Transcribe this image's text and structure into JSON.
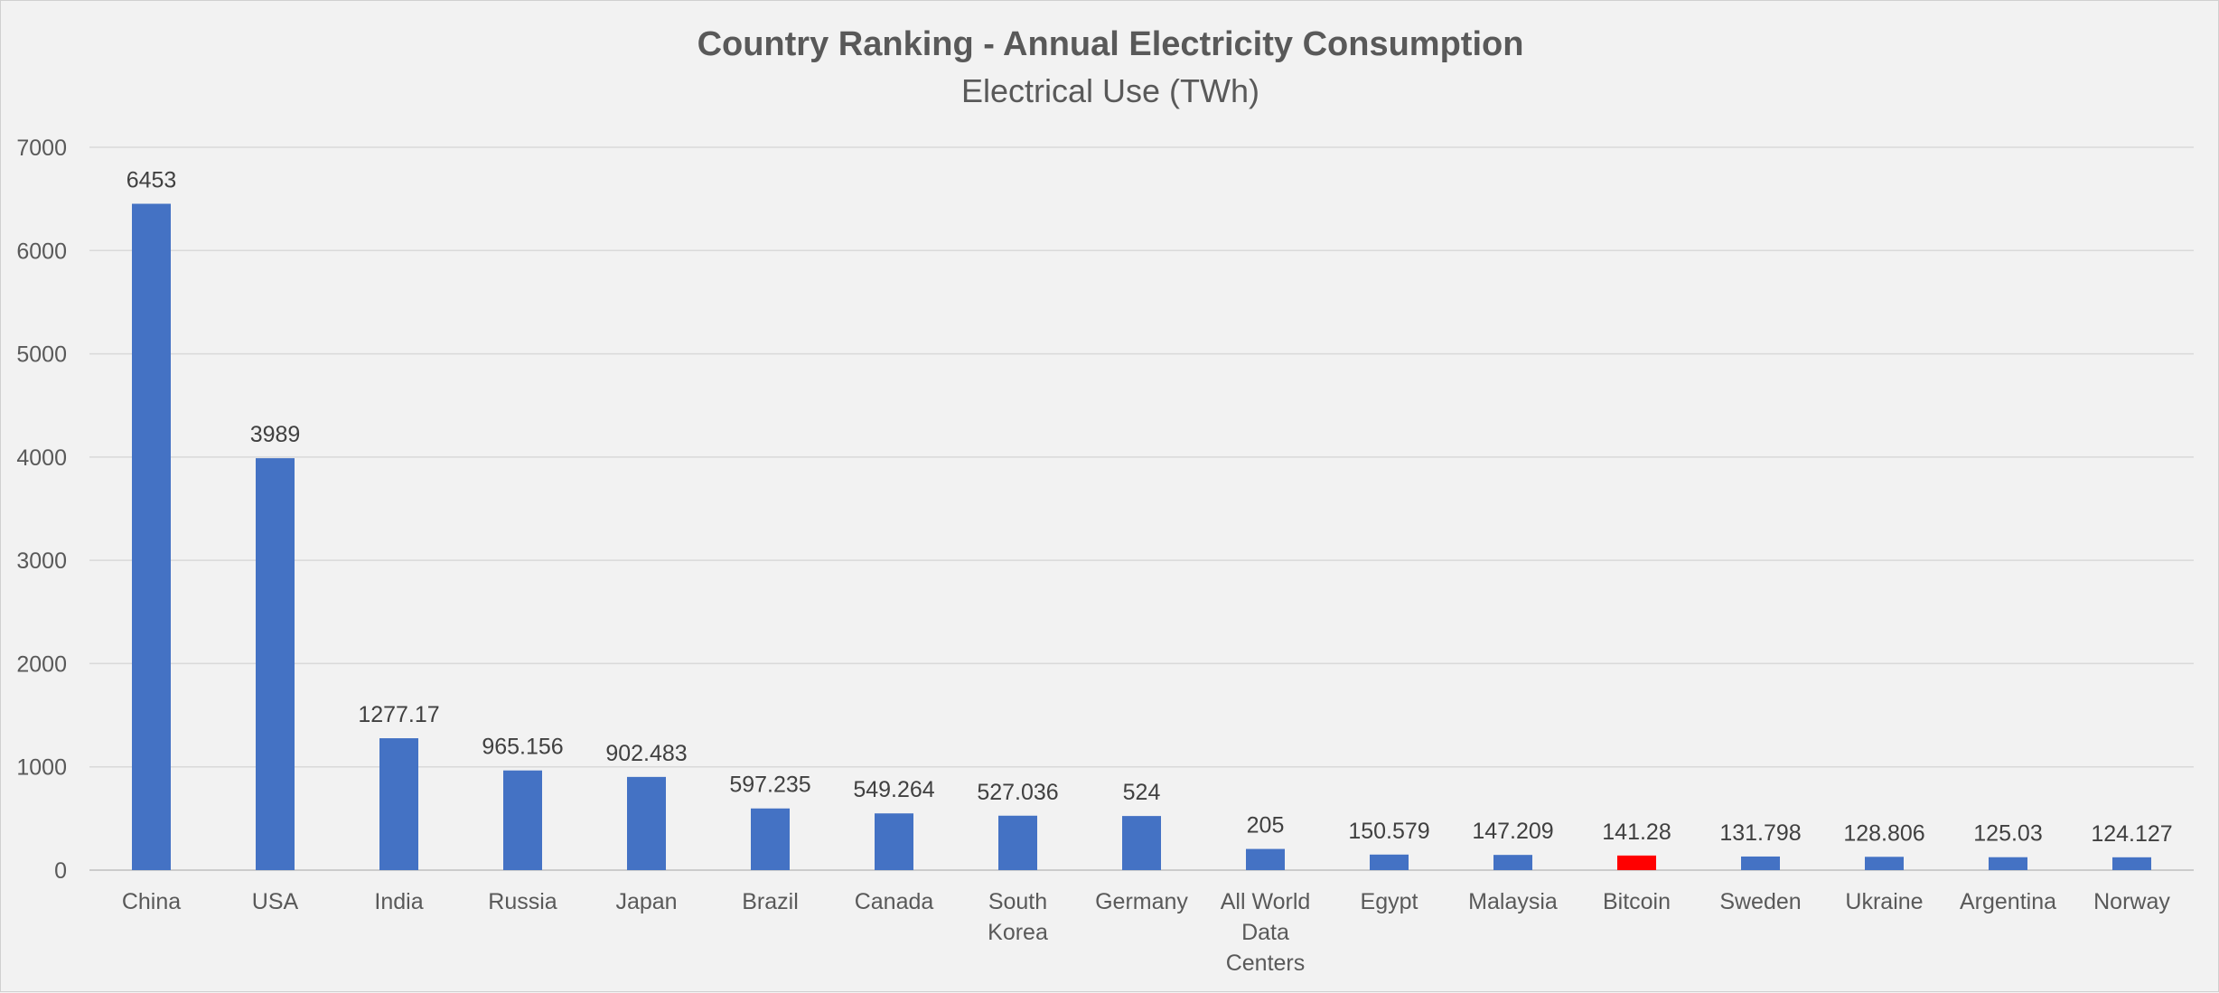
{
  "chart_data": {
    "type": "bar",
    "title": "Country Ranking - Annual Electricity Consumption",
    "subtitle": "Electrical Use (TWh)",
    "xlabel": "",
    "ylabel": "",
    "ylim": [
      0,
      7000
    ],
    "yticks": [
      0,
      1000,
      2000,
      3000,
      4000,
      5000,
      6000,
      7000
    ],
    "grid": true,
    "legend": "none",
    "categories": [
      [
        "China"
      ],
      [
        "USA"
      ],
      [
        "India"
      ],
      [
        "Russia"
      ],
      [
        "Japan"
      ],
      [
        "Brazil"
      ],
      [
        "Canada"
      ],
      [
        "South",
        "Korea"
      ],
      [
        "Germany"
      ],
      [
        "All World",
        "Data",
        "Centers"
      ],
      [
        "Egypt"
      ],
      [
        "Malaysia"
      ],
      [
        "Bitcoin"
      ],
      [
        "Sweden"
      ],
      [
        "Ukraine"
      ],
      [
        "Argentina"
      ],
      [
        "Norway"
      ]
    ],
    "values": [
      6453,
      3989,
      1277.17,
      965.156,
      902.483,
      597.235,
      549.264,
      527.036,
      524,
      205,
      150.579,
      147.209,
      141.28,
      131.798,
      128.806,
      125.03,
      124.127
    ],
    "data_labels": [
      "6453",
      "3989",
      "1277.17",
      "965.156",
      "902.483",
      "597.235",
      "549.264",
      "527.036",
      "524",
      "205",
      "150.579",
      "147.209",
      "141.28",
      "131.798",
      "128.806",
      "125.03",
      "124.127"
    ],
    "bar_colors": [
      "#4472c4",
      "#4472c4",
      "#4472c4",
      "#4472c4",
      "#4472c4",
      "#4472c4",
      "#4472c4",
      "#4472c4",
      "#4472c4",
      "#4472c4",
      "#4472c4",
      "#4472c4",
      "#ff0000",
      "#4472c4",
      "#4472c4",
      "#4472c4",
      "#4472c4"
    ]
  }
}
